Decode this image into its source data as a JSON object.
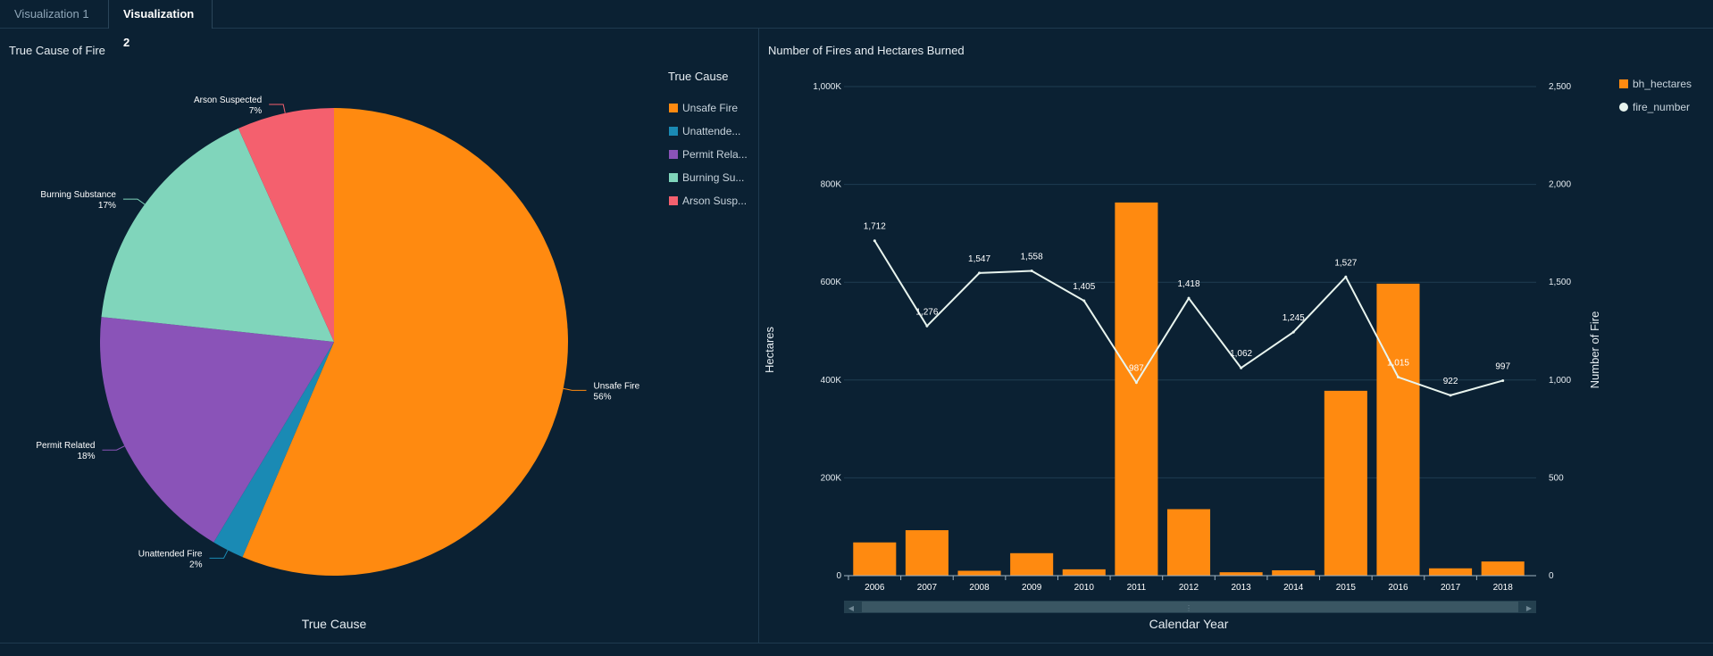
{
  "tabs": [
    {
      "label": "Visualization 1",
      "active": false
    },
    {
      "label": "Visualization 2",
      "active": true
    }
  ],
  "colors": {
    "background": "#0b2133",
    "unsafe_fire": "#ff8a10",
    "unattended_fire": "#1a8ab4",
    "permit_related": "#8a53b8",
    "burning_substance": "#80d5bb",
    "arson_suspected": "#f4606e",
    "bars": "#ff8a10",
    "line": "#e8f4ee"
  },
  "chart_data": [
    {
      "type": "pie",
      "title": "True Cause of Fire",
      "xlabel": "True Cause",
      "legend_title": "True Cause",
      "legend_placement": "right",
      "slices": [
        {
          "label": "Unsafe Fire",
          "legend": "Unsafe Fire",
          "percent_label": "56%",
          "value": 56.4,
          "color": "#ff8a10"
        },
        {
          "label": "Unattended Fire",
          "legend": "Unattende...",
          "percent_label": "2%",
          "value": 2.2,
          "color": "#1a8ab4"
        },
        {
          "label": "Permit Related",
          "legend": "Permit Rela...",
          "percent_label": "18%",
          "value": 18.1,
          "color": "#8a53b8"
        },
        {
          "label": "Burning Substance",
          "legend": "Burning Su...",
          "percent_label": "17%",
          "value": 16.6,
          "color": "#80d5bb"
        },
        {
          "label": "Arson Suspected",
          "legend": "Arson Susp...",
          "percent_label": "7%",
          "value": 6.7,
          "color": "#f4606e"
        }
      ]
    },
    {
      "type": "bar",
      "title": "Number of Fires and Hectares Burned",
      "xlabel": "Calendar Year",
      "ylabel": "Hectares",
      "y2label": "Number of Fire",
      "legend_placement": "top-right",
      "categories": [
        "2006",
        "2007",
        "2008",
        "2009",
        "2010",
        "2011",
        "2012",
        "2013",
        "2014",
        "2015",
        "2016",
        "2017",
        "2018"
      ],
      "ylim": [
        0,
        1000000
      ],
      "y_ticks": [
        "0",
        "200K",
        "400K",
        "600K",
        "800K",
        "1,000K"
      ],
      "y2lim": [
        0,
        2500
      ],
      "y2_ticks": [
        "0",
        "500",
        "1,000",
        "1,500",
        "2,000",
        "2,500"
      ],
      "series": [
        {
          "name": "bh_hectares",
          "kind": "bar",
          "values": [
            68000,
            93000,
            10000,
            46000,
            13000,
            763000,
            136000,
            7000,
            11000,
            378000,
            597000,
            15000,
            29000
          ]
        },
        {
          "name": "fire_number",
          "kind": "line",
          "values": [
            1712,
            1276,
            1547,
            1558,
            1405,
            987,
            1418,
            1062,
            1245,
            1527,
            1015,
            922,
            997
          ],
          "labels": [
            "1,712",
            "1,276",
            "1,547",
            "1,558",
            "1,405",
            "987",
            "1,418",
            "1,062",
            "1,245",
            "1,527",
            "1,015",
            "922",
            "997"
          ]
        }
      ]
    }
  ]
}
